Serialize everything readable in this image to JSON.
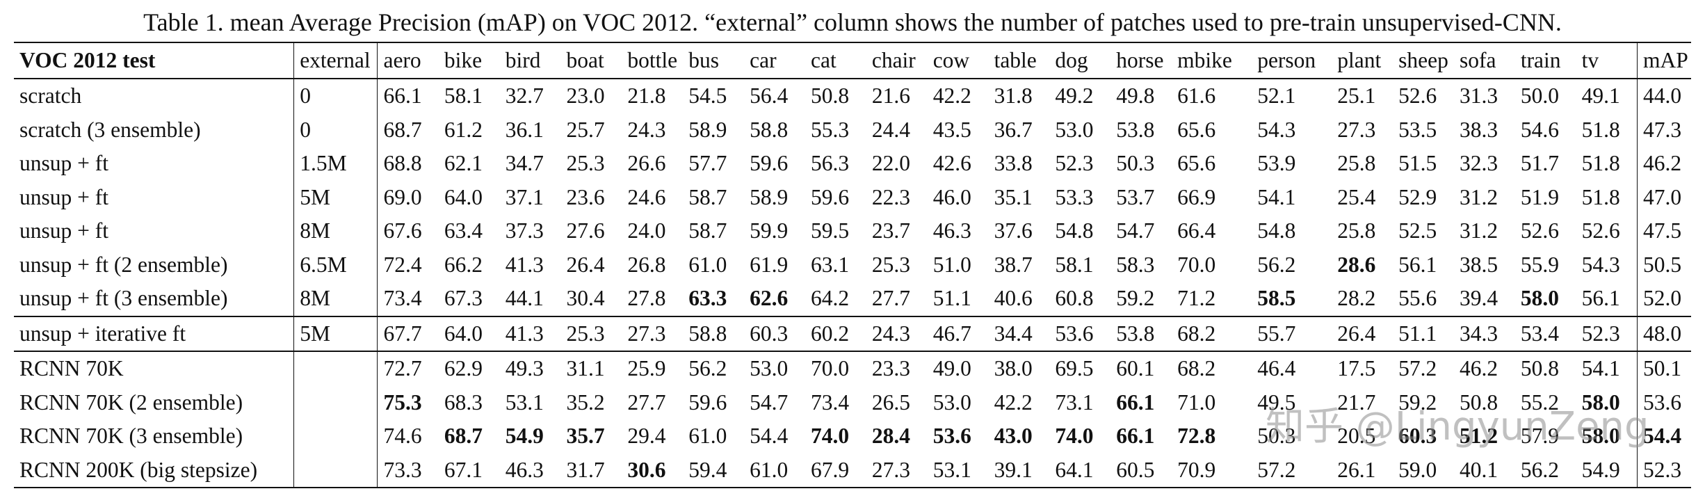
{
  "caption": {
    "label": "Table 1.",
    "text": " mean Average Precision (mAP) on VOC 2012. “external” column shows the number of patches used to pre-train unsupervised-CNN."
  },
  "headers": [
    "VOC 2012 test",
    "external",
    "aero",
    "bike",
    "bird",
    "boat",
    "bottle",
    "bus",
    "car",
    "cat",
    "chair",
    "cow",
    "table",
    "dog",
    "horse",
    "mbike",
    "person",
    "plant",
    "sheep",
    "sofa",
    "train",
    "tv",
    "mAP"
  ],
  "rows": [
    {
      "method": "scratch",
      "external": "0",
      "values": [
        "66.1",
        "58.1",
        "32.7",
        "23.0",
        "21.8",
        "54.5",
        "56.4",
        "50.8",
        "21.6",
        "42.2",
        "31.8",
        "49.2",
        "49.8",
        "61.6",
        "52.1",
        "25.1",
        "52.6",
        "31.3",
        "50.0",
        "49.1",
        "44.0"
      ],
      "bold": []
    },
    {
      "method": "scratch (3 ensemble)",
      "external": "0",
      "values": [
        "68.7",
        "61.2",
        "36.1",
        "25.7",
        "24.3",
        "58.9",
        "58.8",
        "55.3",
        "24.4",
        "43.5",
        "36.7",
        "53.0",
        "53.8",
        "65.6",
        "54.3",
        "27.3",
        "53.5",
        "38.3",
        "54.6",
        "51.8",
        "47.3"
      ],
      "bold": []
    },
    {
      "method": "unsup + ft",
      "external": "1.5M",
      "values": [
        "68.8",
        "62.1",
        "34.7",
        "25.3",
        "26.6",
        "57.7",
        "59.6",
        "56.3",
        "22.0",
        "42.6",
        "33.8",
        "52.3",
        "50.3",
        "65.6",
        "53.9",
        "25.8",
        "51.5",
        "32.3",
        "51.7",
        "51.8",
        "46.2"
      ],
      "bold": []
    },
    {
      "method": "unsup + ft",
      "external": "5M",
      "values": [
        "69.0",
        "64.0",
        "37.1",
        "23.6",
        "24.6",
        "58.7",
        "58.9",
        "59.6",
        "22.3",
        "46.0",
        "35.1",
        "53.3",
        "53.7",
        "66.9",
        "54.1",
        "25.4",
        "52.9",
        "31.2",
        "51.9",
        "51.8",
        "47.0"
      ],
      "bold": []
    },
    {
      "method": "unsup + ft",
      "external": "8M",
      "values": [
        "67.6",
        "63.4",
        "37.3",
        "27.6",
        "24.0",
        "58.7",
        "59.9",
        "59.5",
        "23.7",
        "46.3",
        "37.6",
        "54.8",
        "54.7",
        "66.4",
        "54.8",
        "25.8",
        "52.5",
        "31.2",
        "52.6",
        "52.6",
        "47.5"
      ],
      "bold": []
    },
    {
      "method": "unsup + ft (2 ensemble)",
      "external": "6.5M",
      "values": [
        "72.4",
        "66.2",
        "41.3",
        "26.4",
        "26.8",
        "61.0",
        "61.9",
        "63.1",
        "25.3",
        "51.0",
        "38.7",
        "58.1",
        "58.3",
        "70.0",
        "56.2",
        "28.6",
        "56.1",
        "38.5",
        "55.9",
        "54.3",
        "50.5"
      ],
      "bold": [
        15
      ]
    },
    {
      "method": "unsup + ft (3 ensemble)",
      "external": "8M",
      "values": [
        "73.4",
        "67.3",
        "44.1",
        "30.4",
        "27.8",
        "63.3",
        "62.6",
        "64.2",
        "27.7",
        "51.1",
        "40.6",
        "60.8",
        "59.2",
        "71.2",
        "58.5",
        "28.2",
        "55.6",
        "39.4",
        "58.0",
        "56.1",
        "52.0"
      ],
      "bold": [
        5,
        6,
        14,
        18
      ]
    },
    {
      "method": "unsup + iterative ft",
      "external": "5M",
      "values": [
        "67.7",
        "64.0",
        "41.3",
        "25.3",
        "27.3",
        "58.8",
        "60.3",
        "60.2",
        "24.3",
        "46.7",
        "34.4",
        "53.6",
        "53.8",
        "68.2",
        "55.7",
        "26.4",
        "51.1",
        "34.3",
        "53.4",
        "52.3",
        "48.0"
      ],
      "bold": []
    },
    {
      "method": "RCNN 70K",
      "external": "",
      "values": [
        "72.7",
        "62.9",
        "49.3",
        "31.1",
        "25.9",
        "56.2",
        "53.0",
        "70.0",
        "23.3",
        "49.0",
        "38.0",
        "69.5",
        "60.1",
        "68.2",
        "46.4",
        "17.5",
        "57.2",
        "46.2",
        "50.8",
        "54.1",
        "50.1"
      ],
      "bold": []
    },
    {
      "method": "RCNN 70K (2 ensemble)",
      "external": "",
      "values": [
        "75.3",
        "68.3",
        "53.1",
        "35.2",
        "27.7",
        "59.6",
        "54.7",
        "73.4",
        "26.5",
        "53.0",
        "42.2",
        "73.1",
        "66.1",
        "71.0",
        "49.5",
        "21.7",
        "59.2",
        "50.8",
        "55.2",
        "58.0",
        "53.6"
      ],
      "bold": [
        0,
        12,
        19
      ]
    },
    {
      "method": "RCNN 70K (3 ensemble)",
      "external": "",
      "values": [
        "74.6",
        "68.7",
        "54.9",
        "35.7",
        "29.4",
        "61.0",
        "54.4",
        "74.0",
        "28.4",
        "53.6",
        "43.0",
        "74.0",
        "66.1",
        "72.8",
        "50.3",
        "20.5",
        "60.3",
        "51.2",
        "57.9",
        "58.0",
        "54.4"
      ],
      "bold": [
        1,
        2,
        3,
        7,
        8,
        9,
        10,
        11,
        12,
        13,
        16,
        17,
        19,
        20
      ]
    },
    {
      "method": "RCNN 200K (big stepsize)",
      "external": "",
      "values": [
        "73.3",
        "67.1",
        "46.3",
        "31.7",
        "30.6",
        "59.4",
        "61.0",
        "67.9",
        "27.3",
        "53.1",
        "39.1",
        "64.1",
        "60.5",
        "70.9",
        "57.2",
        "26.1",
        "59.0",
        "40.1",
        "56.2",
        "54.9",
        "52.3"
      ],
      "bold": [
        4
      ]
    }
  ],
  "group_ends": [
    6,
    7
  ],
  "watermark": "知乎 @LingyunZeng"
}
